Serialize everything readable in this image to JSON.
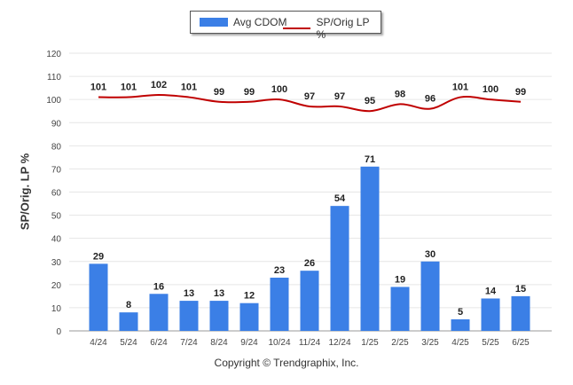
{
  "legend": {
    "bar_label": "Avg CDOM",
    "line_label": "SP/Orig LP %"
  },
  "credit": "Copyright © Trendgraphix, Inc.",
  "colors": {
    "bar": "#3b7fe6",
    "line": "#c00000"
  },
  "chart_data": {
    "type": "bar",
    "ylabel": "SP/Orig. LP %",
    "ylim": [
      0,
      120
    ],
    "yticks": [
      0,
      10,
      20,
      30,
      40,
      50,
      60,
      70,
      80,
      90,
      100,
      110,
      120
    ],
    "grid": true,
    "legend_position": "top",
    "categories": [
      "4/24",
      "5/24",
      "6/24",
      "7/24",
      "8/24",
      "9/24",
      "10/24",
      "11/24",
      "12/24",
      "1/25",
      "2/25",
      "3/25",
      "4/25",
      "5/25",
      "6/25"
    ],
    "series": [
      {
        "name": "Avg CDOM",
        "type": "bar",
        "values": [
          29,
          8,
          16,
          13,
          13,
          12,
          23,
          26,
          54,
          71,
          19,
          30,
          5,
          14,
          15
        ]
      },
      {
        "name": "SP/Orig LP %",
        "type": "line",
        "values": [
          101,
          101,
          102,
          101,
          99,
          99,
          100,
          97,
          97,
          95,
          98,
          96,
          101,
          100,
          99
        ]
      }
    ]
  }
}
